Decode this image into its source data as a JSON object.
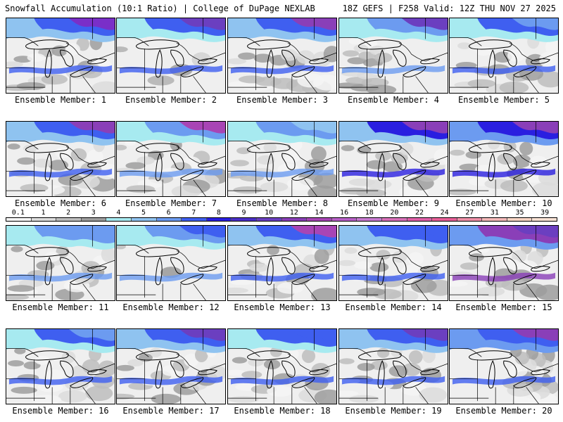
{
  "header": {
    "left": "Snowfall Accumulation (10:1 Ratio) | College of DuPage NEXLAB",
    "right": "18Z GEFS | F258 Valid: 12Z THU NOV 27 2025"
  },
  "colorbar": {
    "labels": [
      "0.1",
      "1",
      "2",
      "3",
      "4",
      "5",
      "6",
      "7",
      "8",
      "9",
      "10",
      "12",
      "14",
      "16",
      "18",
      "20",
      "22",
      "24",
      "27",
      "31",
      "35",
      "39"
    ],
    "colors": [
      "#f4f4f4",
      "#dcdcdc",
      "#bdbdbd",
      "#9d9d9d",
      "#a7eaf0",
      "#8fc3f0",
      "#6c9bf0",
      "#3f5ff0",
      "#2a1fe0",
      "#4b2fc8",
      "#6b3fc0",
      "#8a3fb8",
      "#a845b5",
      "#b860c8",
      "#c87ad0",
      "#d870b8",
      "#e060a8",
      "#e86098",
      "#ee90a8",
      "#f3b8b8",
      "#f6d4c4",
      "#f8e2d4"
    ]
  },
  "panels": [
    {
      "label": "Ensemble Member: 1",
      "dominant": "#7a2fc8",
      "band": "#3f5ff0",
      "light": "#8fc3f0"
    },
    {
      "label": "Ensemble Member: 2",
      "dominant": "#6b3fc0",
      "band": "#3f5ff0",
      "light": "#a7eaf0"
    },
    {
      "label": "Ensemble Member: 3",
      "dominant": "#8a3fb8",
      "band": "#3f5ff0",
      "light": "#8fc3f0"
    },
    {
      "label": "Ensemble Member: 4",
      "dominant": "#6b3fc0",
      "band": "#6c9bf0",
      "light": "#a7eaf0"
    },
    {
      "label": "Ensemble Member: 5",
      "dominant": "#6c9bf0",
      "band": "#3f5ff0",
      "light": "#a7eaf0"
    },
    {
      "label": "Ensemble Member: 6",
      "dominant": "#8a3fb8",
      "band": "#3f5ff0",
      "light": "#8fc3f0"
    },
    {
      "label": "Ensemble Member: 7",
      "dominant": "#a845b5",
      "band": "#6c9bf0",
      "light": "#a7eaf0"
    },
    {
      "label": "Ensemble Member: 8",
      "dominant": "#8fc3f0",
      "band": "#6c9bf0",
      "light": "#a7eaf0"
    },
    {
      "label": "Ensemble Member: 9",
      "dominant": "#8a3fb8",
      "band": "#2a1fe0",
      "light": "#8fc3f0"
    },
    {
      "label": "Ensemble Member: 10",
      "dominant": "#8a3fb8",
      "band": "#2a1fe0",
      "light": "#6c9bf0"
    },
    {
      "label": "Ensemble Member: 11",
      "dominant": "#6c9bf0",
      "band": "#6c9bf0",
      "light": "#a7eaf0"
    },
    {
      "label": "Ensemble Member: 12",
      "dominant": "#3f5ff0",
      "band": "#6c9bf0",
      "light": "#a7eaf0"
    },
    {
      "label": "Ensemble Member: 13",
      "dominant": "#a845b5",
      "band": "#3f5ff0",
      "light": "#8fc3f0"
    },
    {
      "label": "Ensemble Member: 14",
      "dominant": "#3f5ff0",
      "band": "#3f5ff0",
      "light": "#8fc3f0"
    },
    {
      "label": "Ensemble Member: 15",
      "dominant": "#6b3fc0",
      "band": "#8a3fb8",
      "light": "#6c9bf0"
    },
    {
      "label": "Ensemble Member: 16",
      "dominant": "#6c9bf0",
      "band": "#3f5ff0",
      "light": "#a7eaf0"
    },
    {
      "label": "Ensemble Member: 17",
      "dominant": "#6b3fc0",
      "band": "#3f5ff0",
      "light": "#8fc3f0"
    },
    {
      "label": "Ensemble Member: 18",
      "dominant": "#3f5ff0",
      "band": "#3f5ff0",
      "light": "#a7eaf0"
    },
    {
      "label": "Ensemble Member: 19",
      "dominant": "#6b3fc0",
      "band": "#3f5ff0",
      "light": "#8fc3f0"
    },
    {
      "label": "Ensemble Member: 20",
      "dominant": "#8a3fb8",
      "band": "#3f5ff0",
      "light": "#6c9bf0"
    }
  ]
}
